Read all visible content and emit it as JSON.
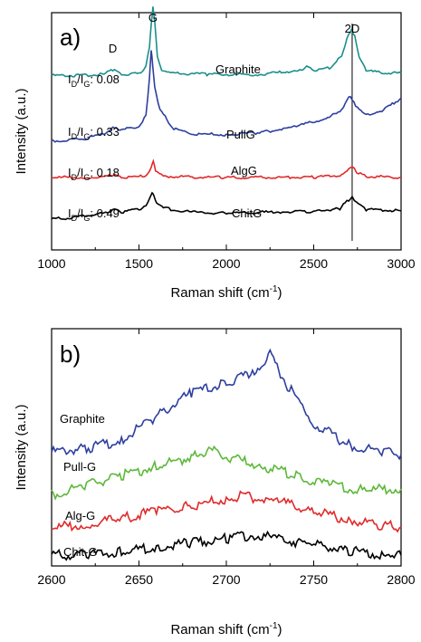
{
  "chart_data": [
    {
      "panel": "a)",
      "type": "line",
      "xlabel": "Raman shift (cm",
      "xlabel_sup": "-1",
      "xlabel_end": ")",
      "ylabel": "Intensity (a.u.)",
      "xlim": [
        1000,
        3000
      ],
      "ylim": [
        0,
        10
      ],
      "xticks": [
        1000,
        1500,
        2000,
        2500,
        3000
      ],
      "grid": false,
      "peak_labels": [
        {
          "text": "D",
          "x": 1350
        },
        {
          "text": "G",
          "x": 1580
        },
        {
          "text": "2D",
          "x": 2720
        }
      ],
      "marker_line_x": 2720,
      "series": [
        {
          "name": "Graphite",
          "color": "#1a8f8a",
          "ratio": {
            "text": "I",
            "sub1": "D",
            "slash": "/I",
            "sub2": "G",
            "value": ": 0.08"
          },
          "baseline": 7.35,
          "points": [
            [
              1000,
              7.35
            ],
            [
              1100,
              7.35
            ],
            [
              1200,
              7.36
            ],
            [
              1300,
              7.4
            ],
            [
              1350,
              7.6
            ],
            [
              1400,
              7.4
            ],
            [
              1500,
              7.42
            ],
            [
              1540,
              7.7
            ],
            [
              1560,
              8.6
            ],
            [
              1572,
              9.7
            ],
            [
              1580,
              10.2
            ],
            [
              1590,
              9.6
            ],
            [
              1605,
              8.2
            ],
            [
              1630,
              7.6
            ],
            [
              1700,
              7.45
            ],
            [
              1900,
              7.4
            ],
            [
              2200,
              7.4
            ],
            [
              2400,
              7.55
            ],
            [
              2460,
              7.7
            ],
            [
              2520,
              7.55
            ],
            [
              2600,
              7.7
            ],
            [
              2660,
              8.2
            ],
            [
              2690,
              8.9
            ],
            [
              2710,
              9.2
            ],
            [
              2720,
              9.25
            ],
            [
              2735,
              9.0
            ],
            [
              2760,
              8.1
            ],
            [
              2800,
              7.55
            ],
            [
              2900,
              7.45
            ],
            [
              3000,
              7.45
            ]
          ]
        },
        {
          "name": "PullG",
          "color": "#2e3f9e",
          "ratio": {
            "text": "I",
            "sub1": "D",
            "slash": "/I",
            "sub2": "G",
            "value": ": 0.33"
          },
          "baseline": 4.6,
          "points": [
            [
              1000,
              4.6
            ],
            [
              1100,
              4.63
            ],
            [
              1200,
              4.7
            ],
            [
              1300,
              4.9
            ],
            [
              1350,
              5.15
            ],
            [
              1400,
              5.05
            ],
            [
              1500,
              5.2
            ],
            [
              1540,
              5.7
            ],
            [
              1560,
              7.2
            ],
            [
              1570,
              8.4
            ],
            [
              1578,
              7.8
            ],
            [
              1590,
              6.9
            ],
            [
              1620,
              5.9
            ],
            [
              1700,
              5.1
            ],
            [
              1800,
              4.9
            ],
            [
              2000,
              4.85
            ],
            [
              2200,
              4.95
            ],
            [
              2400,
              5.2
            ],
            [
              2550,
              5.5
            ],
            [
              2650,
              5.8
            ],
            [
              2690,
              6.3
            ],
            [
              2710,
              6.5
            ],
            [
              2740,
              6.1
            ],
            [
              2800,
              5.7
            ],
            [
              2900,
              5.9
            ],
            [
              3000,
              6.4
            ]
          ]
        },
        {
          "name": "AlgG",
          "color": "#e02a2a",
          "ratio": {
            "text": "I",
            "sub1": "D",
            "slash": "/I",
            "sub2": "G",
            "value": ": 0.18"
          },
          "baseline": 3.05,
          "points": [
            [
              1000,
              3.05
            ],
            [
              1200,
              3.06
            ],
            [
              1300,
              3.08
            ],
            [
              1350,
              3.15
            ],
            [
              1400,
              3.07
            ],
            [
              1540,
              3.1
            ],
            [
              1570,
              3.45
            ],
            [
              1582,
              3.75
            ],
            [
              1595,
              3.35
            ],
            [
              1650,
              3.1
            ],
            [
              2000,
              3.05
            ],
            [
              2500,
              3.06
            ],
            [
              2650,
              3.15
            ],
            [
              2700,
              3.4
            ],
            [
              2720,
              3.5
            ],
            [
              2745,
              3.3
            ],
            [
              2800,
              3.1
            ],
            [
              3000,
              3.05
            ]
          ]
        },
        {
          "name": "ChitG",
          "color": "#000000",
          "ratio": {
            "text": "I",
            "sub1": "D",
            "slash": "/I",
            "sub2": "G",
            "value": ": 0.49"
          },
          "baseline": 1.4,
          "points": [
            [
              1000,
              1.3
            ],
            [
              1100,
              1.35
            ],
            [
              1200,
              1.45
            ],
            [
              1300,
              1.55
            ],
            [
              1350,
              1.7
            ],
            [
              1400,
              1.6
            ],
            [
              1500,
              1.7
            ],
            [
              1550,
              1.95
            ],
            [
              1575,
              2.4
            ],
            [
              1585,
              2.35
            ],
            [
              1600,
              2.0
            ],
            [
              1650,
              1.75
            ],
            [
              1800,
              1.6
            ],
            [
              2000,
              1.55
            ],
            [
              2300,
              1.6
            ],
            [
              2500,
              1.62
            ],
            [
              2650,
              1.75
            ],
            [
              2700,
              2.1
            ],
            [
              2720,
              2.25
            ],
            [
              2745,
              2.0
            ],
            [
              2800,
              1.7
            ],
            [
              3000,
              1.65
            ]
          ]
        }
      ]
    },
    {
      "panel": "b)",
      "type": "line",
      "xlabel": "Raman shift (cm",
      "xlabel_sup": "-1",
      "xlabel_end": ")",
      "ylabel": "Intensity (a.u.)",
      "xlim": [
        2600,
        2800
      ],
      "ylim": [
        0,
        10
      ],
      "xticks": [
        2600,
        2650,
        2700,
        2750,
        2800
      ],
      "grid": false,
      "series": [
        {
          "name": "Graphite",
          "color": "#2e3f9e",
          "points": [
            [
              2600,
              4.8
            ],
            [
              2620,
              4.95
            ],
            [
              2640,
              5.3
            ],
            [
              2660,
              6.3
            ],
            [
              2680,
              7.3
            ],
            [
              2700,
              7.7
            ],
            [
              2715,
              8.1
            ],
            [
              2725,
              8.9
            ],
            [
              2735,
              7.6
            ],
            [
              2750,
              6.0
            ],
            [
              2770,
              5.1
            ],
            [
              2790,
              4.8
            ],
            [
              2800,
              4.7
            ]
          ]
        },
        {
          "name": "Pull-G",
          "color": "#5cb83a",
          "points": [
            [
              2600,
              3.0
            ],
            [
              2620,
              3.4
            ],
            [
              2640,
              3.8
            ],
            [
              2660,
              4.2
            ],
            [
              2680,
              4.6
            ],
            [
              2690,
              4.9
            ],
            [
              2700,
              4.6
            ],
            [
              2720,
              4.2
            ],
            [
              2740,
              3.8
            ],
            [
              2760,
              3.4
            ],
            [
              2780,
              3.2
            ],
            [
              2800,
              3.25
            ]
          ]
        },
        {
          "name": "Alg-G",
          "color": "#e02a2a",
          "points": [
            [
              2600,
              1.6
            ],
            [
              2620,
              1.75
            ],
            [
              2640,
              2.0
            ],
            [
              2660,
              2.3
            ],
            [
              2680,
              2.55
            ],
            [
              2700,
              2.8
            ],
            [
              2710,
              2.95
            ],
            [
              2730,
              2.7
            ],
            [
              2750,
              2.3
            ],
            [
              2770,
              1.95
            ],
            [
              2790,
              1.7
            ],
            [
              2800,
              1.65
            ]
          ]
        },
        {
          "name": "Chit-G",
          "color": "#000000",
          "points": [
            [
              2600,
              0.45
            ],
            [
              2620,
              0.5
            ],
            [
              2640,
              0.6
            ],
            [
              2660,
              0.8
            ],
            [
              2680,
              1.0
            ],
            [
              2700,
              1.15
            ],
            [
              2715,
              1.3
            ],
            [
              2730,
              1.15
            ],
            [
              2750,
              0.9
            ],
            [
              2770,
              0.65
            ],
            [
              2790,
              0.5
            ],
            [
              2800,
              0.45
            ]
          ]
        }
      ]
    }
  ]
}
